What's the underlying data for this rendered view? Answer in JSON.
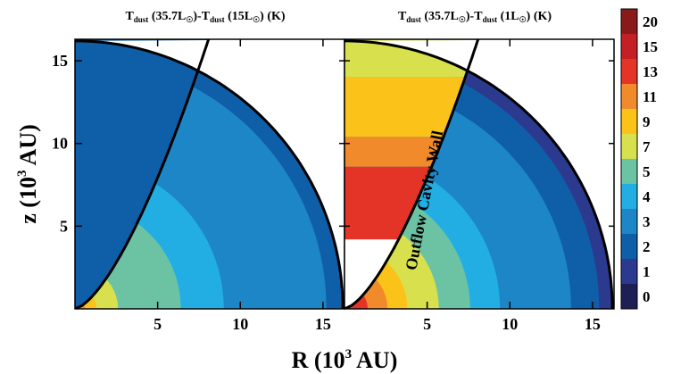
{
  "chart_data": [
    {
      "type": "heatmap",
      "title_main": "T",
      "title_sub": "dust",
      "title_rest": " (35.7L",
      "title_sun": "☉",
      "title_rest2": ")-T",
      "title_sub2": "dust",
      "title_rest3": " (15L",
      "title_end": ") (K)",
      "xlim": [
        0,
        16.3
      ],
      "ylim": [
        0,
        16.3
      ],
      "x_ticks": [
        5,
        10,
        15
      ],
      "y_ticks": [
        5,
        10,
        15
      ],
      "x_tick_labels": [
        "5",
        "10",
        "15"
      ],
      "y_tick_labels": [
        "5",
        "10",
        "15"
      ],
      "outer_radius": 16.2,
      "wall": {
        "a": 0.71,
        "pow": 1.5
      },
      "cavity_value": 2,
      "zones": [
        {
          "r": 0.6,
          "value": 11
        },
        {
          "r": 1.3,
          "value": 9
        },
        {
          "r": 2.6,
          "value": 7
        },
        {
          "r": 4.3,
          "value": 6
        },
        {
          "r": 6.4,
          "value": 5
        },
        {
          "r": 9.0,
          "value": 4
        },
        {
          "r": 14.2,
          "value": 3
        },
        {
          "r": 15.2,
          "value": 3
        },
        {
          "r": 16.2,
          "value": 2
        }
      ]
    },
    {
      "type": "heatmap",
      "title_main": "T",
      "title_sub": "dust",
      "title_rest": " (35.7L",
      "title_sun": "☉",
      "title_rest2": ")-T",
      "title_sub2": "dust",
      "title_rest3": " (1L",
      "title_end": ") (K)",
      "annotation": "Outflow Cavity Wall",
      "xlim": [
        0,
        16.3
      ],
      "ylim": [
        0,
        16.3
      ],
      "x_ticks": [
        5,
        10,
        15
      ],
      "x_tick_labels": [
        "5",
        "10",
        "15"
      ],
      "outer_radius": 16.2,
      "wall": {
        "a": 0.71,
        "pow": 1.5
      },
      "cavity_bands": [
        {
          "zmax": 4.2,
          "value": -1
        },
        {
          "zmax": 6.8,
          "value": 14
        },
        {
          "zmax": 8.6,
          "value": 13
        },
        {
          "zmax": 10.4,
          "value": 11
        },
        {
          "zmax": 14.0,
          "value": 9
        },
        {
          "zmax": 16.3,
          "value": 7
        }
      ],
      "zones": [
        {
          "r": 1.4,
          "value": 13
        },
        {
          "r": 2.6,
          "value": 11
        },
        {
          "r": 3.8,
          "value": 9
        },
        {
          "r": 5.7,
          "value": 7
        },
        {
          "r": 7.6,
          "value": 5
        },
        {
          "r": 9.4,
          "value": 4
        },
        {
          "r": 11.3,
          "value": 3
        },
        {
          "r": 13.7,
          "value": 3
        },
        {
          "r": 15.4,
          "value": 2
        },
        {
          "r": 16.2,
          "value": 1
        }
      ]
    }
  ],
  "x_axis_label": "R (10",
  "x_axis_sup": "3",
  "x_axis_end": " AU)",
  "y_axis_label": "z (10",
  "y_axis_sup": "3",
  "y_axis_end": " AU)",
  "colorbar": {
    "labels": [
      "20",
      "15",
      "13",
      "11",
      "9",
      "7",
      "5",
      "4",
      "3",
      "2",
      "1",
      "0"
    ],
    "colors": [
      "#8a1a1a",
      "#c41f24",
      "#e43427",
      "#f08a2b",
      "#fbc219",
      "#d8e04d",
      "#6cc3a4",
      "#22aee3",
      "#1d86c7",
      "#0f5fa8",
      "#2b3a8f",
      "#1d1f55"
    ]
  },
  "colors": {
    "cavity_empty": "#ffffff",
    "line": "#000000"
  }
}
